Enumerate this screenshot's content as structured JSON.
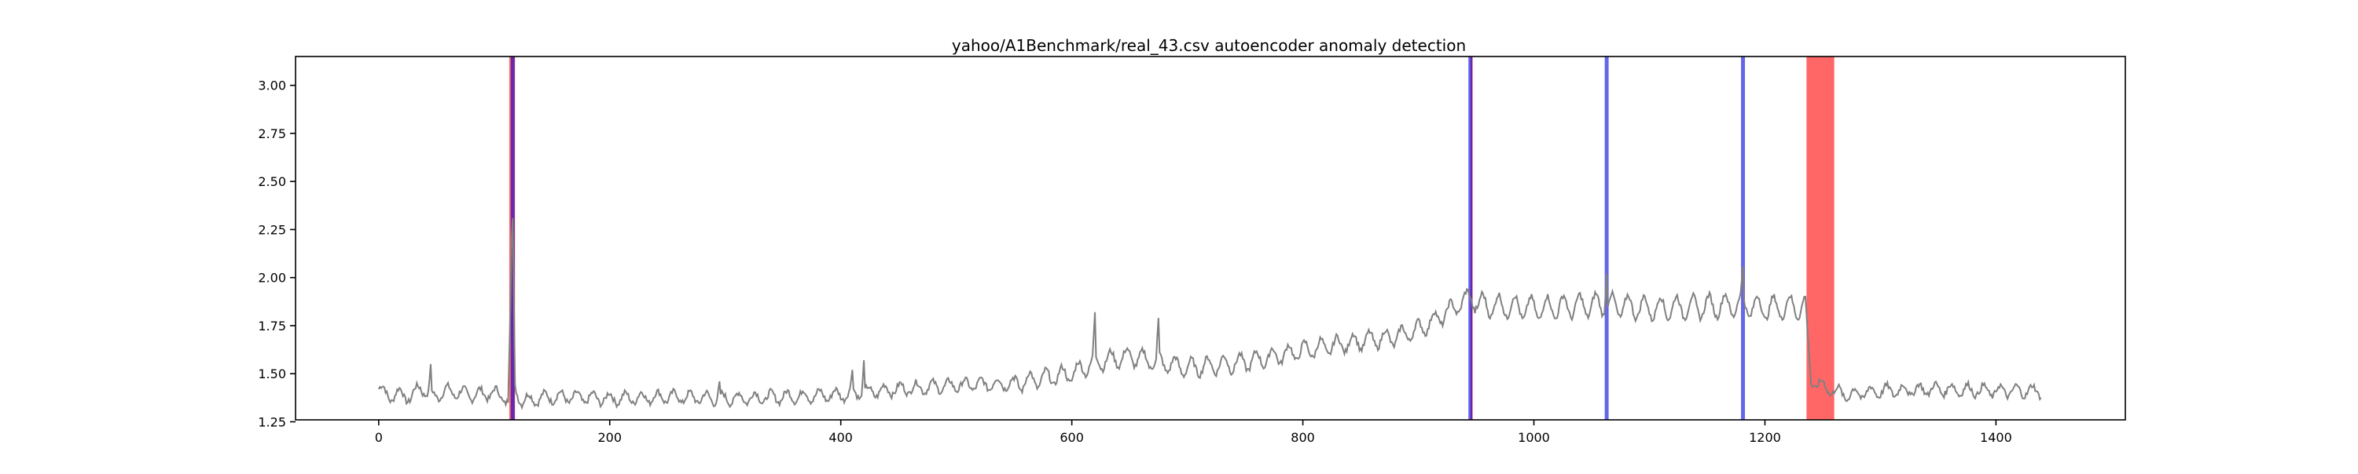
{
  "chart_data": {
    "type": "line",
    "title": "yahoo/A1Benchmark/real_43.csv autoencoder anomaly detection",
    "xlabel": "",
    "ylabel": "",
    "xlim": [
      -72,
      1512
    ],
    "ylim": [
      1.26,
      3.15
    ],
    "x_ticks": [
      0,
      200,
      400,
      600,
      800,
      1000,
      1200,
      1400
    ],
    "y_ticks": [
      1.25,
      1.5,
      1.75,
      2.0,
      2.25,
      2.5,
      2.75,
      3.0
    ],
    "y_tick_labels": [
      "1.25",
      "1.50",
      "1.75",
      "2.00",
      "2.25",
      "2.50",
      "2.75",
      "3.00"
    ],
    "grid": false,
    "series": [
      {
        "color": "#808080",
        "x_start": 0,
        "x_end": 1439,
        "x_step": 1,
        "mode": "segments",
        "segments": [
          [
            0,
            1.42
          ],
          [
            12,
            1.38
          ],
          [
            20,
            1.4
          ],
          [
            28,
            1.37
          ],
          [
            36,
            1.44
          ],
          [
            44,
            1.38
          ],
          [
            60,
            1.41
          ],
          [
            80,
            1.39
          ],
          [
            100,
            1.4
          ],
          [
            108,
            1.38
          ],
          [
            112,
            1.36
          ],
          [
            116,
            2.3
          ],
          [
            118,
            1.42
          ],
          [
            124,
            1.36
          ],
          [
            150,
            1.38
          ],
          [
            200,
            1.37
          ],
          [
            250,
            1.38
          ],
          [
            300,
            1.37
          ],
          [
            350,
            1.38
          ],
          [
            400,
            1.39
          ],
          [
            450,
            1.42
          ],
          [
            500,
            1.44
          ],
          [
            550,
            1.45
          ],
          [
            600,
            1.5
          ],
          [
            620,
            1.56
          ],
          [
            650,
            1.59
          ],
          [
            700,
            1.53
          ],
          [
            750,
            1.56
          ],
          [
            800,
            1.62
          ],
          [
            850,
            1.67
          ],
          [
            880,
            1.69
          ],
          [
            900,
            1.73
          ],
          [
            920,
            1.8
          ],
          [
            940,
            1.88
          ],
          [
            945,
            1.9
          ],
          [
            950,
            1.86
          ],
          [
            1000,
            1.84
          ],
          [
            1060,
            1.86
          ],
          [
            1100,
            1.84
          ],
          [
            1150,
            1.85
          ],
          [
            1180,
            1.86
          ],
          [
            1200,
            1.84
          ],
          [
            1235,
            1.85
          ],
          [
            1240,
            1.46
          ],
          [
            1260,
            1.41
          ],
          [
            1270,
            1.39
          ],
          [
            1300,
            1.41
          ],
          [
            1350,
            1.42
          ],
          [
            1400,
            1.41
          ],
          [
            1439,
            1.41
          ]
        ],
        "spikes": [
          [
            45,
            1.55
          ],
          [
            116,
            2.31
          ],
          [
            295,
            1.46
          ],
          [
            410,
            1.52
          ],
          [
            420,
            1.57
          ],
          [
            620,
            1.82
          ],
          [
            675,
            1.79
          ],
          [
            1063,
            2.02
          ],
          [
            1181,
            2.06
          ]
        ],
        "wiggle_period": 14,
        "wiggle_amp": 0.03
      }
    ],
    "vlines": [
      {
        "x": 116,
        "color": "#0000dd",
        "alpha": 0.6
      },
      {
        "x": 945,
        "color": "#0000dd",
        "alpha": 0.6
      },
      {
        "x": 1063,
        "color": "#0000dd",
        "alpha": 0.6
      },
      {
        "x": 1181,
        "color": "#0000dd",
        "alpha": 0.6
      }
    ],
    "spans": [
      {
        "x0": 113,
        "x1": 118,
        "color": "#ff0000",
        "alpha": 0.6
      },
      {
        "x0": 945,
        "x1": 947,
        "color": "#ff0000",
        "alpha": 0.6
      },
      {
        "x0": 1236,
        "x1": 1260,
        "color": "#ff0000",
        "alpha": 0.6
      }
    ]
  }
}
